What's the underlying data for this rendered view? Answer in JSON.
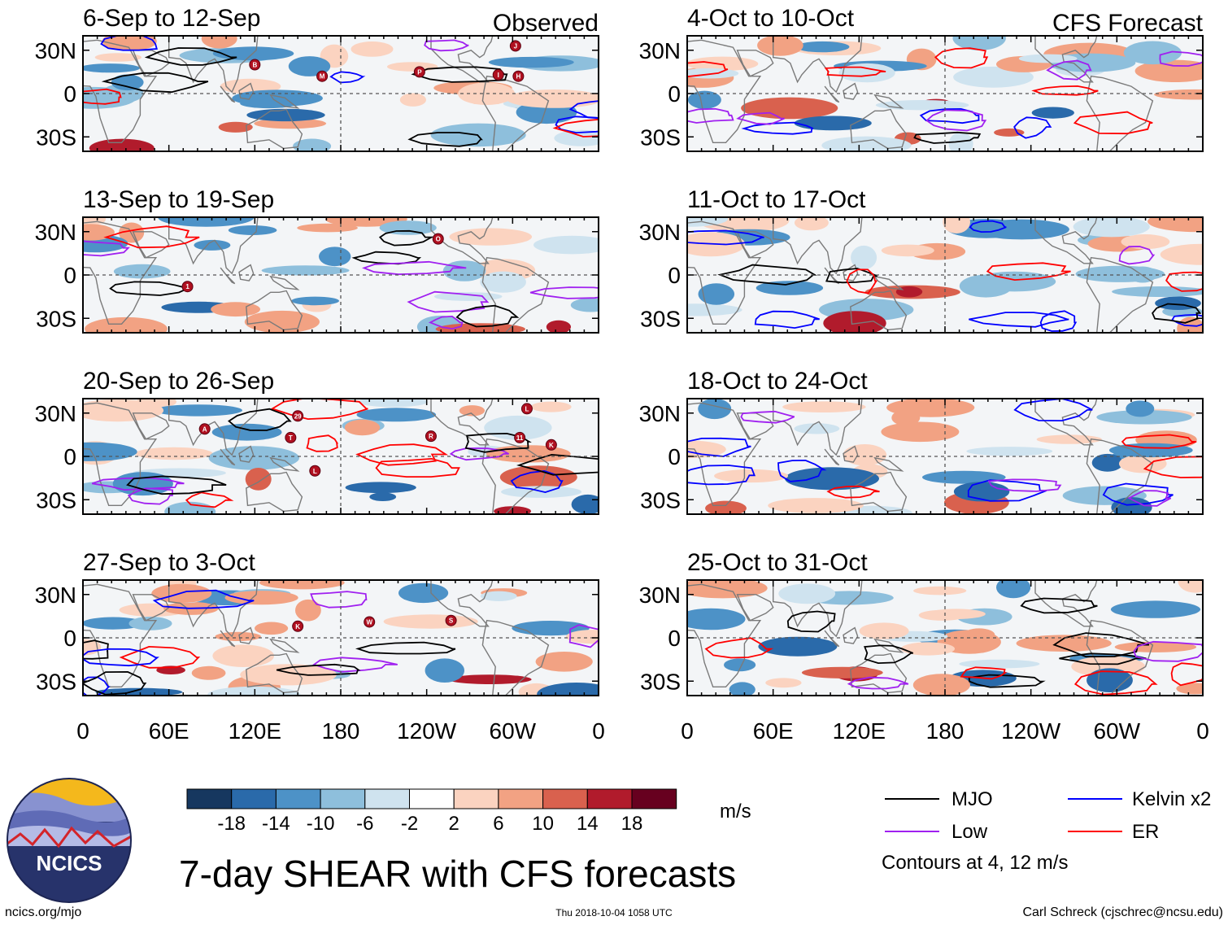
{
  "chart_data": {
    "type": "heatmap",
    "title": "7-day SHEAR with CFS forecasts",
    "observed_label": "Observed",
    "forecast_label": "CFS Forecast",
    "panels": [
      {
        "id": "obs1",
        "group": "observed",
        "title": "6-Sep to 12-Sep",
        "storms": [
          {
            "label": "B",
            "lon": 120,
            "lat": 20
          },
          {
            "label": "M",
            "lon": 167,
            "lat": 12
          },
          {
            "label": "P",
            "lon": 235,
            "lat": 15
          },
          {
            "label": "J",
            "lon": 302,
            "lat": 33
          },
          {
            "label": "I",
            "lon": 290,
            "lat": 13
          },
          {
            "label": "H",
            "lon": 304,
            "lat": 12
          }
        ]
      },
      {
        "id": "obs2",
        "group": "observed",
        "title": "13-Sep to 19-Sep",
        "storms": [
          {
            "label": "1",
            "lon": 73,
            "lat": -8
          },
          {
            "label": "O",
            "lon": 248,
            "lat": 25
          }
        ]
      },
      {
        "id": "obs3",
        "group": "observed",
        "title": "20-Sep to 26-Sep",
        "storms": [
          {
            "label": "A",
            "lon": 85,
            "lat": 19
          },
          {
            "label": "29",
            "lon": 150,
            "lat": 28
          },
          {
            "label": "T",
            "lon": 145,
            "lat": 13
          },
          {
            "label": "R",
            "lon": 243,
            "lat": 14
          },
          {
            "label": "L",
            "lon": 310,
            "lat": 33
          },
          {
            "label": "11",
            "lon": 305,
            "lat": 13
          },
          {
            "label": "K",
            "lon": 327,
            "lat": 8
          },
          {
            "label": "L",
            "lon": 162,
            "lat": -10
          }
        ]
      },
      {
        "id": "obs4",
        "group": "observed",
        "title": "27-Sep to 3-Oct",
        "storms": [
          {
            "label": "K",
            "lon": 150,
            "lat": 8
          },
          {
            "label": "W",
            "lon": 200,
            "lat": 11
          },
          {
            "label": "S",
            "lon": 257,
            "lat": 12
          }
        ]
      },
      {
        "id": "fc1",
        "group": "forecast",
        "title": "4-Oct to 10-Oct",
        "storms": []
      },
      {
        "id": "fc2",
        "group": "forecast",
        "title": "11-Oct to 17-Oct",
        "storms": []
      },
      {
        "id": "fc3",
        "group": "forecast",
        "title": "18-Oct to 24-Oct",
        "storms": []
      },
      {
        "id": "fc4",
        "group": "forecast",
        "title": "25-Oct to 31-Oct",
        "storms": []
      }
    ],
    "x_axis": {
      "range": [
        0,
        360
      ],
      "ticks": [
        {
          "lon": 0,
          "label": "0"
        },
        {
          "lon": 60,
          "label": "60E"
        },
        {
          "lon": 120,
          "label": "120E"
        },
        {
          "lon": 180,
          "label": "180"
        },
        {
          "lon": 240,
          "label": "120W"
        },
        {
          "lon": 300,
          "label": "60W"
        },
        {
          "lon": 360,
          "label": "0"
        }
      ]
    },
    "y_axis": {
      "range": [
        -40,
        40
      ],
      "ticks": [
        {
          "lat": 30,
          "label": "30N"
        },
        {
          "lat": 0,
          "label": "0"
        },
        {
          "lat": -30,
          "label": "30S"
        }
      ]
    },
    "colorbar": {
      "units": "m/s",
      "colors": [
        "#16375f",
        "#2a6aaa",
        "#4d92c7",
        "#8ebfdc",
        "#cfe3ef",
        "#ffffff",
        "#fbd3c0",
        "#f2a283",
        "#d9614e",
        "#b11b2c",
        "#67001f"
      ],
      "labels": [
        "-18",
        "-14",
        "-10",
        "-6",
        "-2",
        "2",
        "6",
        "10",
        "14",
        "18"
      ]
    },
    "legend": [
      {
        "label": "MJO",
        "color": "#000000"
      },
      {
        "label": "Kelvin x2",
        "color": "#0000ff"
      },
      {
        "label": "Low",
        "color": "#a020f0"
      },
      {
        "label": "ER",
        "color": "#ff0000"
      }
    ],
    "contour_note": "Contours at 4, 12 m/s"
  },
  "footer": {
    "website": "ncics.org/mjo",
    "timestamp": "Thu 2018-10-04 1058 UTC",
    "credit": "Carl Schreck (cjschrec@ncsu.edu)",
    "logo_text": "NCICS"
  }
}
